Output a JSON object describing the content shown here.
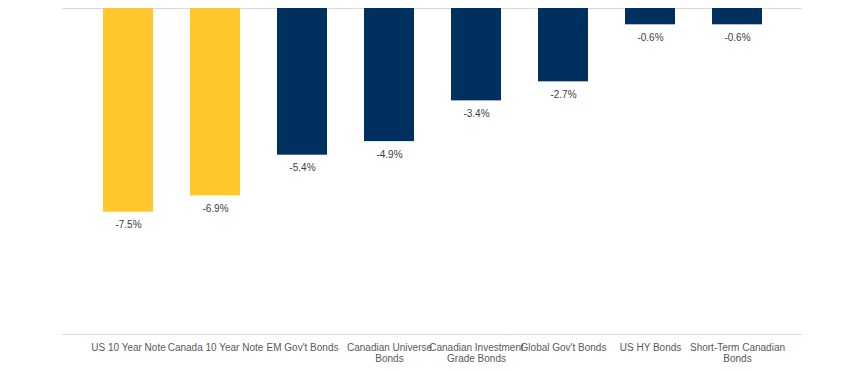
{
  "chart_data": {
    "type": "bar",
    "categories": [
      "US 10 Year Note",
      "Canada 10 Year Note",
      "EM Gov't Bonds",
      "Canadian Universe Bonds",
      "Canadian Investment Grade Bonds",
      "Global Gov't Bonds",
      "US HY Bonds",
      "Short-Term Canadian Bonds"
    ],
    "values": [
      -7.5,
      -6.9,
      -5.4,
      -4.9,
      -3.4,
      -2.7,
      -0.6,
      -0.6
    ],
    "value_labels": [
      "-7.5%",
      "-6.9%",
      "-5.4%",
      "-4.9%",
      "-3.4%",
      "-2.7%",
      "-0.6%",
      "-0.6%"
    ],
    "colors": [
      "#ffc72c",
      "#ffc72c",
      "#00305f",
      "#00305f",
      "#00305f",
      "#00305f",
      "#00305f",
      "#00305f"
    ],
    "ylim": [
      -12,
      0
    ],
    "data_labels": true,
    "tick_labels": "x"
  }
}
